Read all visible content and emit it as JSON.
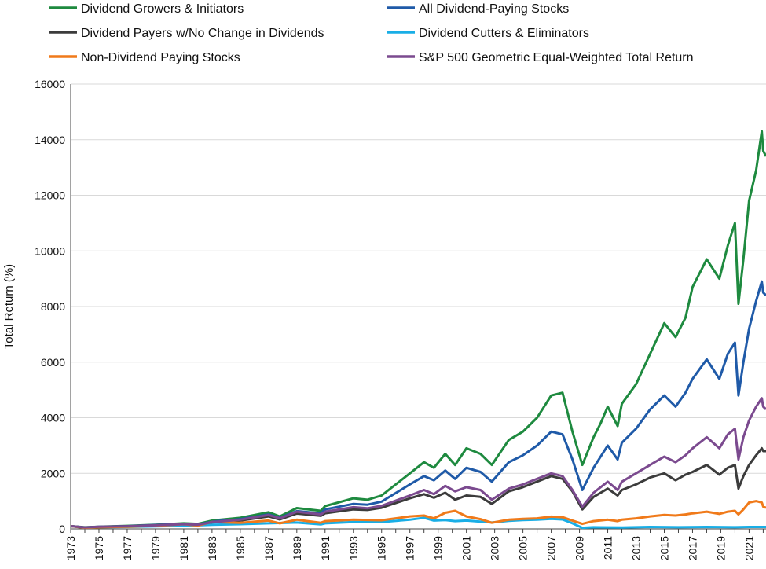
{
  "chart_data": {
    "type": "line",
    "title": "",
    "xlabel": "",
    "ylabel": "Total Return (%)",
    "ylim": [
      0,
      16000
    ],
    "yticks": [
      0,
      2000,
      4000,
      6000,
      8000,
      10000,
      12000,
      14000,
      16000
    ],
    "xlim": [
      1973,
      2022.2
    ],
    "xticks": [
      "1973",
      "1975",
      "1977",
      "1979",
      "1981",
      "1983",
      "1985",
      "1987",
      "1989",
      "1991",
      "1993",
      "1995",
      "1997",
      "1999",
      "2001",
      "2003",
      "2005",
      "2007",
      "2009",
      "2011",
      "2013",
      "2015",
      "2017",
      "2019",
      "2021"
    ],
    "grid": true,
    "legend_position": "top",
    "series": [
      {
        "name": "Dividend Growers & Initiators",
        "color": "#1e8a3f",
        "points": [
          [
            1973,
            100
          ],
          [
            1974,
            60
          ],
          [
            1975,
            80
          ],
          [
            1977,
            110
          ],
          [
            1979,
            150
          ],
          [
            1981,
            200
          ],
          [
            1982,
            180
          ],
          [
            1983,
            300
          ],
          [
            1985,
            400
          ],
          [
            1987,
            600
          ],
          [
            1987.8,
            450
          ],
          [
            1989,
            750
          ],
          [
            1990.7,
            650
          ],
          [
            1991,
            820
          ],
          [
            1993,
            1100
          ],
          [
            1994,
            1050
          ],
          [
            1995,
            1200
          ],
          [
            1997,
            2000
          ],
          [
            1998,
            2400
          ],
          [
            1998.7,
            2200
          ],
          [
            1999.5,
            2700
          ],
          [
            2000.2,
            2300
          ],
          [
            2001,
            2900
          ],
          [
            2002,
            2700
          ],
          [
            2002.8,
            2300
          ],
          [
            2004,
            3200
          ],
          [
            2005,
            3500
          ],
          [
            2006,
            4000
          ],
          [
            2007,
            4800
          ],
          [
            2007.8,
            4900
          ],
          [
            2008.5,
            3500
          ],
          [
            2009.2,
            2300
          ],
          [
            2010,
            3300
          ],
          [
            2010.5,
            3800
          ],
          [
            2011,
            4400
          ],
          [
            2011.7,
            3700
          ],
          [
            2012,
            4500
          ],
          [
            2013,
            5200
          ],
          [
            2014,
            6300
          ],
          [
            2015,
            7400
          ],
          [
            2015.8,
            6900
          ],
          [
            2016.5,
            7600
          ],
          [
            2017,
            8700
          ],
          [
            2018,
            9700
          ],
          [
            2018.9,
            9000
          ],
          [
            2019.5,
            10200
          ],
          [
            2020,
            11000
          ],
          [
            2020.25,
            8100
          ],
          [
            2020.6,
            9700
          ],
          [
            2021,
            11800
          ],
          [
            2021.5,
            12900
          ],
          [
            2021.9,
            14300
          ],
          [
            2022,
            13600
          ],
          [
            2022.2,
            13400
          ]
        ]
      },
      {
        "name": "All Dividend-Paying Stocks",
        "color": "#1f5aa8",
        "points": [
          [
            1973,
            100
          ],
          [
            1974,
            55
          ],
          [
            1975,
            75
          ],
          [
            1977,
            100
          ],
          [
            1979,
            140
          ],
          [
            1981,
            180
          ],
          [
            1982,
            160
          ],
          [
            1983,
            260
          ],
          [
            1985,
            350
          ],
          [
            1987,
            520
          ],
          [
            1987.8,
            400
          ],
          [
            1989,
            640
          ],
          [
            1990.7,
            560
          ],
          [
            1991,
            700
          ],
          [
            1993,
            900
          ],
          [
            1994,
            870
          ],
          [
            1995,
            980
          ],
          [
            1997,
            1600
          ],
          [
            1998,
            1900
          ],
          [
            1998.7,
            1750
          ],
          [
            1999.5,
            2100
          ],
          [
            2000.2,
            1800
          ],
          [
            2001,
            2200
          ],
          [
            2002,
            2050
          ],
          [
            2002.8,
            1700
          ],
          [
            2004,
            2400
          ],
          [
            2005,
            2650
          ],
          [
            2006,
            3000
          ],
          [
            2007,
            3500
          ],
          [
            2007.8,
            3400
          ],
          [
            2008.5,
            2500
          ],
          [
            2009.2,
            1400
          ],
          [
            2010,
            2200
          ],
          [
            2010.5,
            2600
          ],
          [
            2011,
            3000
          ],
          [
            2011.7,
            2500
          ],
          [
            2012,
            3100
          ],
          [
            2013,
            3600
          ],
          [
            2014,
            4300
          ],
          [
            2015,
            4800
          ],
          [
            2015.8,
            4400
          ],
          [
            2016.5,
            4900
          ],
          [
            2017,
            5400
          ],
          [
            2018,
            6100
          ],
          [
            2018.9,
            5400
          ],
          [
            2019.5,
            6300
          ],
          [
            2020,
            6700
          ],
          [
            2020.25,
            4800
          ],
          [
            2020.6,
            6000
          ],
          [
            2021,
            7200
          ],
          [
            2021.5,
            8200
          ],
          [
            2021.9,
            8900
          ],
          [
            2022,
            8500
          ],
          [
            2022.2,
            8400
          ]
        ]
      },
      {
        "name": "Dividend Payers w/No Change in Dividends",
        "color": "#3c3c3c",
        "points": [
          [
            1973,
            100
          ],
          [
            1974,
            50
          ],
          [
            1975,
            70
          ],
          [
            1977,
            90
          ],
          [
            1979,
            120
          ],
          [
            1981,
            160
          ],
          [
            1982,
            140
          ],
          [
            1983,
            230
          ],
          [
            1985,
            300
          ],
          [
            1987,
            450
          ],
          [
            1987.8,
            340
          ],
          [
            1989,
            550
          ],
          [
            1990.7,
            470
          ],
          [
            1991,
            560
          ],
          [
            1993,
            700
          ],
          [
            1994,
            680
          ],
          [
            1995,
            760
          ],
          [
            1997,
            1100
          ],
          [
            1998,
            1250
          ],
          [
            1998.7,
            1120
          ],
          [
            1999.5,
            1300
          ],
          [
            2000.2,
            1050
          ],
          [
            2001,
            1200
          ],
          [
            2002,
            1150
          ],
          [
            2002.8,
            900
          ],
          [
            2004,
            1350
          ],
          [
            2005,
            1500
          ],
          [
            2006,
            1700
          ],
          [
            2007,
            1900
          ],
          [
            2007.8,
            1800
          ],
          [
            2008.5,
            1350
          ],
          [
            2009.2,
            700
          ],
          [
            2010,
            1150
          ],
          [
            2010.5,
            1300
          ],
          [
            2011,
            1450
          ],
          [
            2011.7,
            1200
          ],
          [
            2012,
            1400
          ],
          [
            2013,
            1600
          ],
          [
            2014,
            1850
          ],
          [
            2015,
            2000
          ],
          [
            2015.8,
            1750
          ],
          [
            2016.5,
            1950
          ],
          [
            2017,
            2050
          ],
          [
            2018,
            2300
          ],
          [
            2018.9,
            1950
          ],
          [
            2019.5,
            2200
          ],
          [
            2020,
            2300
          ],
          [
            2020.25,
            1450
          ],
          [
            2020.6,
            1900
          ],
          [
            2021,
            2300
          ],
          [
            2021.5,
            2650
          ],
          [
            2021.9,
            2900
          ],
          [
            2022,
            2800
          ],
          [
            2022.2,
            2800
          ]
        ]
      },
      {
        "name": "Dividend Cutters & Eliminators",
        "color": "#19aee6",
        "points": [
          [
            1973,
            100
          ],
          [
            1974,
            40
          ],
          [
            1975,
            60
          ],
          [
            1977,
            70
          ],
          [
            1979,
            90
          ],
          [
            1981,
            110
          ],
          [
            1983,
            150
          ],
          [
            1985,
            170
          ],
          [
            1987,
            200
          ],
          [
            1989,
            230
          ],
          [
            1990.7,
            160
          ],
          [
            1991,
            200
          ],
          [
            1993,
            250
          ],
          [
            1995,
            250
          ],
          [
            1997,
            330
          ],
          [
            1998,
            400
          ],
          [
            1998.7,
            300
          ],
          [
            1999.5,
            320
          ],
          [
            2000.2,
            280
          ],
          [
            2001,
            300
          ],
          [
            2002.8,
            230
          ],
          [
            2004,
            290
          ],
          [
            2005,
            320
          ],
          [
            2006,
            330
          ],
          [
            2007,
            360
          ],
          [
            2007.8,
            340
          ],
          [
            2008.5,
            200
          ],
          [
            2009.2,
            40
          ],
          [
            2010,
            60
          ],
          [
            2012,
            50
          ],
          [
            2014,
            70
          ],
          [
            2016,
            60
          ],
          [
            2018,
            70
          ],
          [
            2020,
            60
          ],
          [
            2021,
            70
          ],
          [
            2022.2,
            70
          ]
        ]
      },
      {
        "name": "Non-Dividend Paying Stocks",
        "color": "#f07a1a",
        "points": [
          [
            1973,
            100
          ],
          [
            1974,
            40
          ],
          [
            1975,
            60
          ],
          [
            1977,
            80
          ],
          [
            1979,
            110
          ],
          [
            1981,
            170
          ],
          [
            1982,
            120
          ],
          [
            1983,
            250
          ],
          [
            1985,
            220
          ],
          [
            1987,
            300
          ],
          [
            1987.8,
            200
          ],
          [
            1989,
            330
          ],
          [
            1990.7,
            220
          ],
          [
            1991,
            280
          ],
          [
            1993,
            330
          ],
          [
            1995,
            310
          ],
          [
            1997,
            450
          ],
          [
            1998,
            480
          ],
          [
            1998.7,
            380
          ],
          [
            1999.5,
            580
          ],
          [
            2000.2,
            650
          ],
          [
            2001,
            450
          ],
          [
            2002,
            350
          ],
          [
            2002.8,
            220
          ],
          [
            2004,
            330
          ],
          [
            2005,
            360
          ],
          [
            2006,
            380
          ],
          [
            2007,
            440
          ],
          [
            2007.8,
            420
          ],
          [
            2008.5,
            300
          ],
          [
            2009.2,
            180
          ],
          [
            2010,
            280
          ],
          [
            2011,
            330
          ],
          [
            2011.7,
            280
          ],
          [
            2012,
            330
          ],
          [
            2013,
            380
          ],
          [
            2014,
            450
          ],
          [
            2015,
            500
          ],
          [
            2015.8,
            480
          ],
          [
            2016.5,
            520
          ],
          [
            2017,
            560
          ],
          [
            2018,
            620
          ],
          [
            2018.9,
            540
          ],
          [
            2019.5,
            620
          ],
          [
            2020,
            650
          ],
          [
            2020.25,
            520
          ],
          [
            2020.6,
            700
          ],
          [
            2021,
            950
          ],
          [
            2021.5,
            1000
          ],
          [
            2021.9,
            950
          ],
          [
            2022,
            800
          ],
          [
            2022.2,
            760
          ]
        ]
      },
      {
        "name": "S&P 500 Geometric Equal-Weighted Total Return",
        "color": "#7b4a8f",
        "points": [
          [
            1973,
            100
          ],
          [
            1974,
            55
          ],
          [
            1975,
            75
          ],
          [
            1977,
            95
          ],
          [
            1979,
            130
          ],
          [
            1981,
            170
          ],
          [
            1982,
            150
          ],
          [
            1983,
            240
          ],
          [
            1985,
            330
          ],
          [
            1987,
            500
          ],
          [
            1987.8,
            380
          ],
          [
            1989,
            620
          ],
          [
            1990.7,
            520
          ],
          [
            1991,
            620
          ],
          [
            1993,
            780
          ],
          [
            1994,
            740
          ],
          [
            1995,
            830
          ],
          [
            1997,
            1200
          ],
          [
            1998,
            1400
          ],
          [
            1998.7,
            1250
          ],
          [
            1999.5,
            1550
          ],
          [
            2000.2,
            1350
          ],
          [
            2001,
            1500
          ],
          [
            2002,
            1400
          ],
          [
            2002.8,
            1050
          ],
          [
            2004,
            1450
          ],
          [
            2005,
            1600
          ],
          [
            2006,
            1800
          ],
          [
            2007,
            2000
          ],
          [
            2007.8,
            1900
          ],
          [
            2008.5,
            1400
          ],
          [
            2009.2,
            800
          ],
          [
            2010,
            1300
          ],
          [
            2010.5,
            1500
          ],
          [
            2011,
            1700
          ],
          [
            2011.7,
            1400
          ],
          [
            2012,
            1700
          ],
          [
            2013,
            2000
          ],
          [
            2014,
            2300
          ],
          [
            2015,
            2600
          ],
          [
            2015.8,
            2400
          ],
          [
            2016.5,
            2650
          ],
          [
            2017,
            2900
          ],
          [
            2018,
            3300
          ],
          [
            2018.9,
            2900
          ],
          [
            2019.5,
            3400
          ],
          [
            2020,
            3600
          ],
          [
            2020.25,
            2500
          ],
          [
            2020.6,
            3300
          ],
          [
            2021,
            3900
          ],
          [
            2021.5,
            4400
          ],
          [
            2021.9,
            4700
          ],
          [
            2022,
            4400
          ],
          [
            2022.2,
            4300
          ]
        ]
      }
    ]
  }
}
